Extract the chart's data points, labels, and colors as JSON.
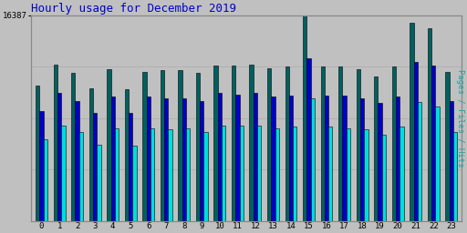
{
  "title": "Hourly usage for December 2019",
  "hours": [
    0,
    1,
    2,
    3,
    4,
    5,
    6,
    7,
    8,
    9,
    10,
    11,
    12,
    13,
    14,
    15,
    16,
    17,
    18,
    19,
    20,
    21,
    22,
    23
  ],
  "hits": [
    10800,
    12500,
    11800,
    10600,
    12100,
    10500,
    11900,
    12000,
    12000,
    11800,
    12400,
    12400,
    12500,
    12200,
    12300,
    16387,
    12300,
    12300,
    12100,
    11500,
    12300,
    15800,
    15400,
    11900
  ],
  "files": [
    8800,
    10200,
    9600,
    8600,
    9900,
    8600,
    9900,
    9800,
    9800,
    9600,
    10200,
    10100,
    10200,
    9900,
    10000,
    13000,
    10000,
    10000,
    9800,
    9400,
    9900,
    12700,
    12400,
    9600
  ],
  "pages": [
    6500,
    7600,
    7100,
    6100,
    7400,
    6000,
    7400,
    7300,
    7400,
    7100,
    7600,
    7600,
    7600,
    7400,
    7500,
    9800,
    7500,
    7400,
    7300,
    6900,
    7500,
    9500,
    9100,
    7100
  ],
  "hits_color": "#006060",
  "files_color": "#0000cc",
  "pages_color": "#00dddd",
  "bg_color": "#c0c0c0",
  "plot_bg": "#c0c0c0",
  "title_color": "#0000cc",
  "ylabel_color": "#00aaaa",
  "ylabel": "Pages / Files / Hits",
  "ymax": 16387,
  "ytick_label": "16387",
  "bar_width": 0.22,
  "edgecolor": "#000000"
}
